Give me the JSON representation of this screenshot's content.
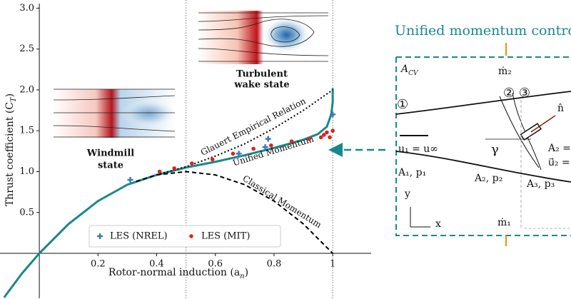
{
  "chart_data": {
    "type": "line",
    "y_label": [
      "Thrust coefficient (C",
      "T",
      ")"
    ],
    "x_label": [
      "Rotor-normal induction (a",
      "n",
      ")"
    ],
    "xlim": [
      -0.134,
      1.131
    ],
    "ylim": [
      -0.55,
      3.1
    ],
    "xticks": [
      0.2,
      0.4,
      0.6,
      0.8,
      1.0
    ],
    "yticks": [
      0.5,
      1.0,
      1.5,
      2.0,
      2.5,
      3.0
    ],
    "vlines": [
      0.5,
      1.0
    ],
    "series": [
      {
        "name": "Unified Momentum",
        "color": "#18898a",
        "style": "solid",
        "x": [
          -0.12,
          -0.06,
          0,
          0.1,
          0.2,
          0.3,
          0.4,
          0.5,
          0.6,
          0.7,
          0.8,
          0.9,
          0.95,
          0.98,
          0.995,
          1.0,
          1.0
        ],
        "values": [
          -0.54,
          -0.25,
          0,
          0.36,
          0.64,
          0.84,
          0.96,
          1.05,
          1.12,
          1.2,
          1.29,
          1.39,
          1.46,
          1.55,
          1.7,
          1.85,
          2.02
        ]
      },
      {
        "name": "Classical Momentum",
        "color": "#000000",
        "style": "dashed",
        "x": [
          0.33,
          0.4,
          0.5,
          0.6,
          0.7,
          0.8,
          0.9,
          1.0
        ],
        "values": [
          0.88,
          0.96,
          1.0,
          0.96,
          0.84,
          0.64,
          0.36,
          0
        ]
      },
      {
        "name": "Glauert Empirical Relation",
        "color": "#000000",
        "style": "dotted",
        "x": [
          0.4,
          0.5,
          0.6,
          0.7,
          0.8,
          0.9,
          1.0
        ],
        "values": [
          0.96,
          1.06,
          1.19,
          1.34,
          1.53,
          1.75,
          2.0
        ]
      },
      {
        "name": "LES (NREL)",
        "color": "#3d78c4",
        "style": "plus",
        "x": [
          0.31,
          0.68,
          0.77,
          0.78,
          1.0
        ],
        "values": [
          0.9,
          1.22,
          1.3,
          1.4,
          1.7
        ]
      },
      {
        "name": "LES (MIT)",
        "color": "#e02020",
        "style": "dot",
        "x": [
          0.41,
          0.46,
          0.52,
          0.59,
          0.66,
          0.73,
          0.79,
          0.86,
          0.92,
          0.96,
          0.97,
          0.98,
          0.99,
          1.0
        ],
        "values": [
          1.0,
          1.04,
          1.1,
          1.15,
          1.22,
          1.28,
          1.32,
          1.37,
          1.4,
          1.42,
          1.45,
          1.48,
          1.42,
          1.5
        ]
      }
    ],
    "annotations": [
      "Windmill",
      "state",
      "Turbulent",
      "wake state"
    ]
  },
  "diagram": {
    "title": "Unified momentum contro",
    "labels": {
      "acv": [
        "A",
        "CV"
      ],
      "m2": "ṁ₂",
      "m1": "ṁ₁",
      "s1": "①",
      "s23": "② ③",
      "n": "n̂",
      "gamma": "γ",
      "u1": "u₁ = u∞",
      "a2eq": "A₂ =",
      "u2eq": "u⃗₂ =",
      "a1": "A₁,  p₁",
      "a2": "A₂,  p₂",
      "a3": "A₃,  p₃",
      "y": "y",
      "x": "x"
    }
  }
}
